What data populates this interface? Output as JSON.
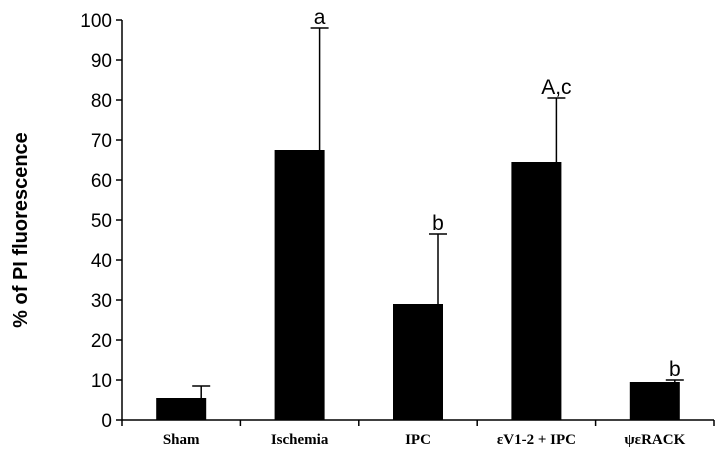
{
  "chart_data": {
    "type": "bar",
    "title": "",
    "xlabel": "",
    "ylabel": "% of PI fluorescence",
    "ylim": [
      0,
      100
    ],
    "yticks": [
      0,
      10,
      20,
      30,
      40,
      50,
      60,
      70,
      80,
      90,
      100
    ],
    "grid": false,
    "legend": "none",
    "categories": [
      "Sham",
      "Ischemia",
      "IPC",
      "εV1-2 + IPC",
      "ψεRACK"
    ],
    "values": [
      5.5,
      67.5,
      29,
      64.5,
      9.5
    ],
    "error_upper": [
      8.5,
      98,
      46.5,
      80.5,
      10
    ],
    "annotations": [
      "",
      "a",
      "b",
      "A,c",
      "b"
    ],
    "bar_color": "#000000"
  }
}
